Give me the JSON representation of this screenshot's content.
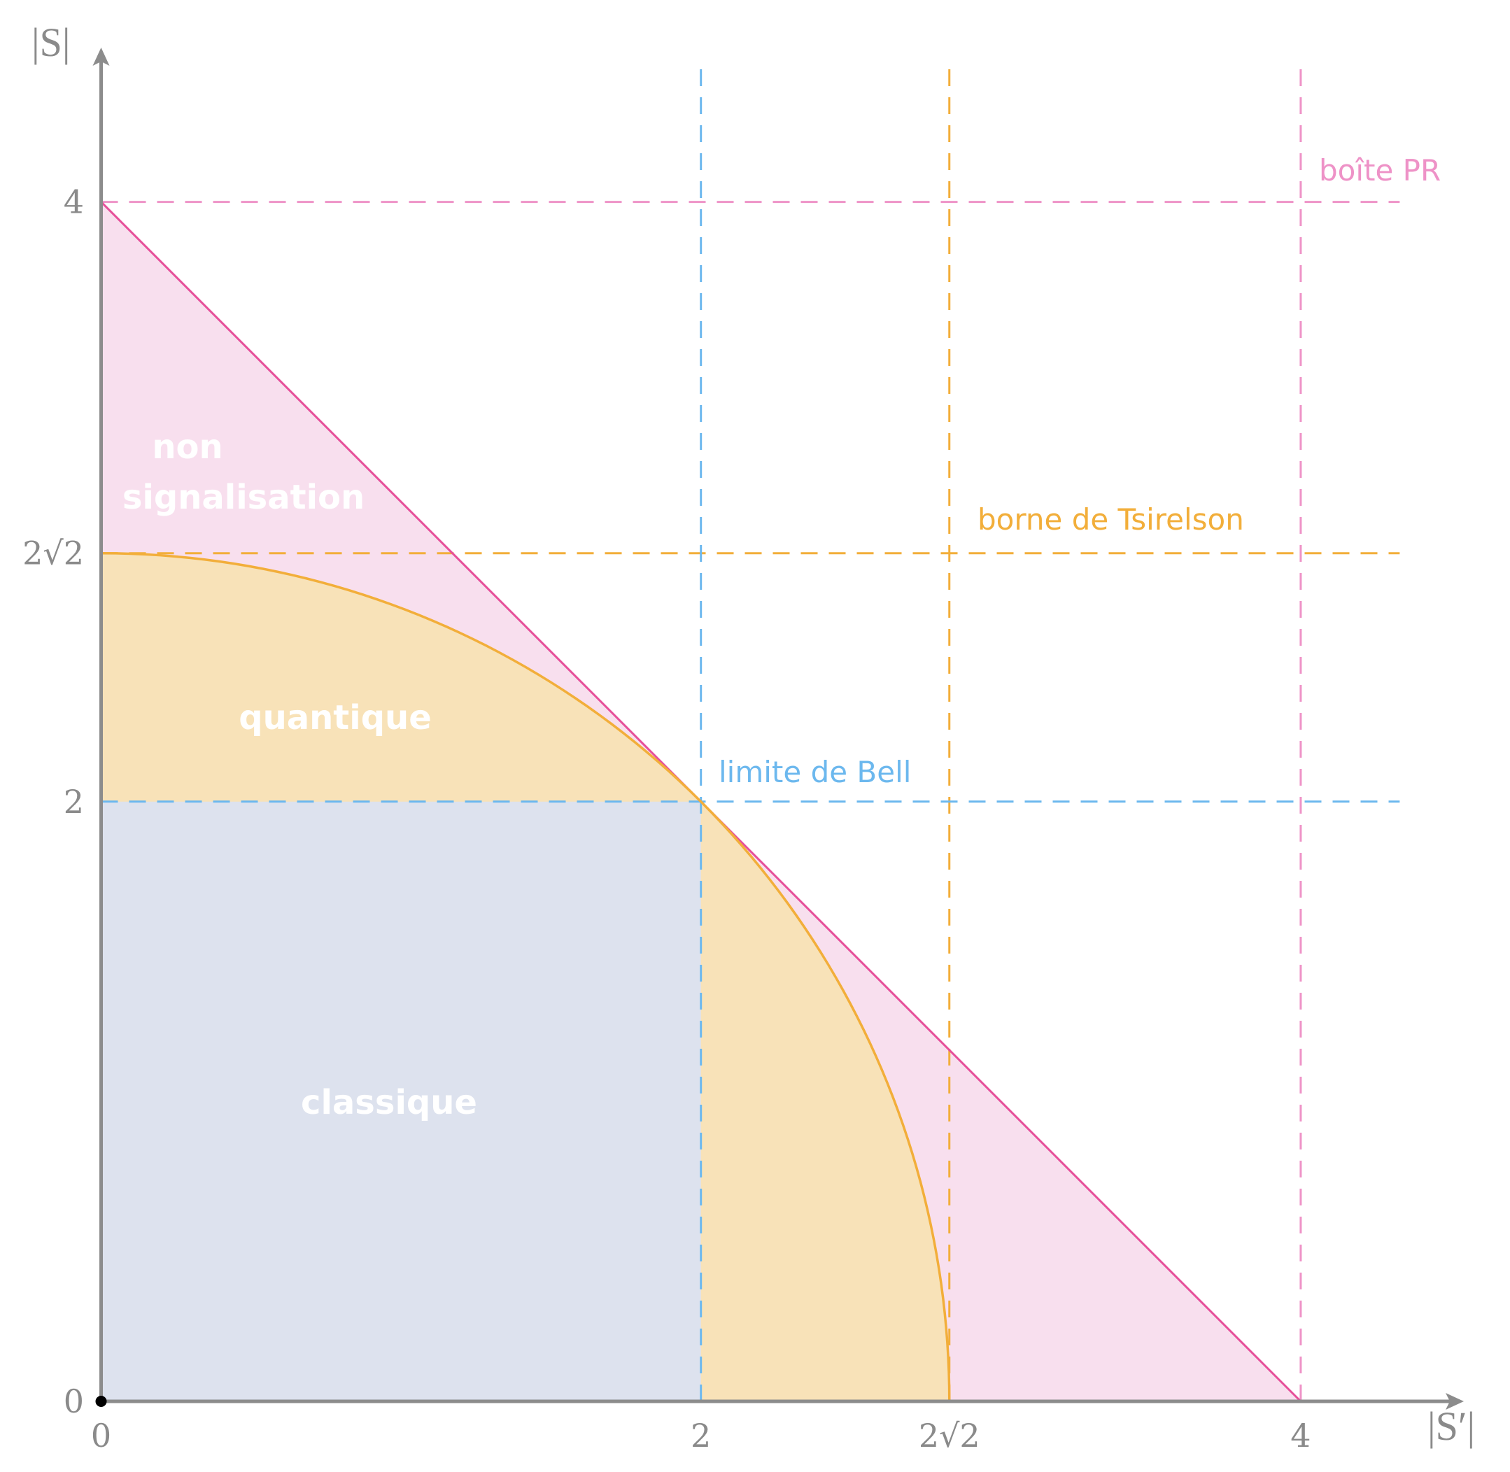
{
  "chart_data": {
    "type": "area",
    "xlabel": "|S′|",
    "ylabel": "|S|",
    "xlim": [
      0,
      4.4
    ],
    "ylim": [
      0,
      4.5
    ],
    "x_ticks": [
      {
        "value": 0,
        "label": "0"
      },
      {
        "value": 2,
        "label": "2"
      },
      {
        "value": 2.8284,
        "label": "2√2"
      },
      {
        "value": 4,
        "label": "4"
      }
    ],
    "y_ticks": [
      {
        "value": 0,
        "label": "0"
      },
      {
        "value": 2,
        "label": "2"
      },
      {
        "value": 2.8284,
        "label": "2√2"
      },
      {
        "value": 4,
        "label": "4"
      }
    ],
    "regions": [
      {
        "name": "non signalisation",
        "lines": [
          "non",
          "signalisation"
        ],
        "boundary": "|S| + |S′| ≤ 4",
        "fill": "#f8dfee",
        "edge": "#e6509a"
      },
      {
        "name": "quantique",
        "lines": [
          "quantique"
        ],
        "boundary": "|S|² + |S′|² ≤ 8",
        "fill": "#f8e2b8",
        "edge": "#f2ae3a"
      },
      {
        "name": "classique",
        "lines": [
          "classique"
        ],
        "boundary": "|S| ≤ 2, |S′| ≤ 2",
        "fill": "#dde2ee"
      }
    ],
    "bounds": [
      {
        "label": "boîte PR",
        "value": 4,
        "color": "#ee92c7"
      },
      {
        "label": "borne de Tsirelson",
        "value": 2.8284,
        "color": "#f2ae3a"
      },
      {
        "label": "limite de Bell",
        "value": 2,
        "color": "#6cb8ee"
      }
    ],
    "axis_color": "#8c8c8c",
    "origin_point": [
      0,
      0
    ],
    "grid": false
  }
}
